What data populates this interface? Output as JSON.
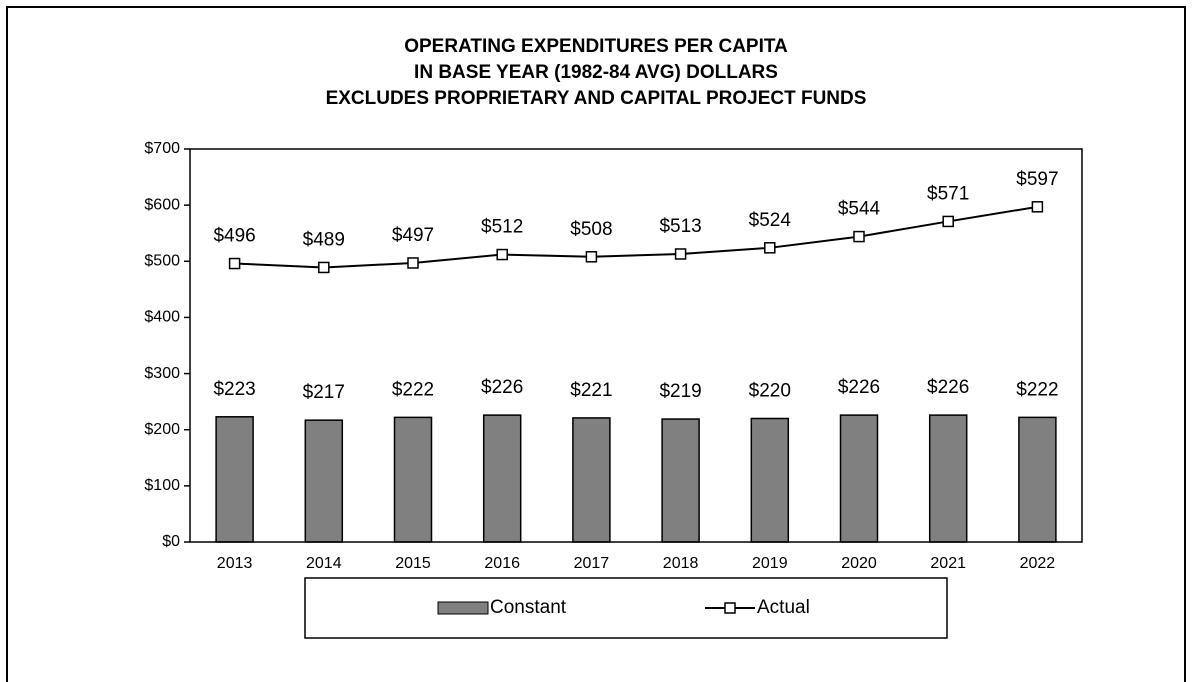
{
  "chart_data": {
    "type": "combo",
    "title": [
      "OPERATING EXPENDITURES PER CAPITA",
      "IN BASE YEAR (1982-84 AVG) DOLLARS",
      "EXCLUDES PROPRIETARY AND CAPITAL PROJECT FUNDS"
    ],
    "categories": [
      "2013",
      "2014",
      "2015",
      "2016",
      "2017",
      "2018",
      "2019",
      "2020",
      "2021",
      "2022"
    ],
    "series": [
      {
        "name": "Constant",
        "type": "bar",
        "color": "#808080",
        "values": [
          223,
          217,
          222,
          226,
          221,
          219,
          220,
          226,
          226,
          222
        ],
        "value_labels": [
          "$223",
          "$217",
          "$222",
          "$226",
          "$221",
          "$219",
          "$220",
          "$226",
          "$226",
          "$222"
        ]
      },
      {
        "name": "Actual",
        "type": "line",
        "color": "#000000",
        "values": [
          496,
          489,
          497,
          512,
          508,
          513,
          524,
          544,
          571,
          597
        ],
        "value_labels": [
          "$496",
          "$489",
          "$497",
          "$512",
          "$508",
          "$513",
          "$524",
          "$544",
          "$571",
          "$597"
        ]
      }
    ],
    "ylim": [
      0,
      700
    ],
    "yticks": [
      {
        "value": 0,
        "label": "$0"
      },
      {
        "value": 100,
        "label": "$100"
      },
      {
        "value": 200,
        "label": "$200"
      },
      {
        "value": 300,
        "label": "$300"
      },
      {
        "value": 400,
        "label": "$400"
      },
      {
        "value": 500,
        "label": "$500"
      },
      {
        "value": 600,
        "label": "$600"
      },
      {
        "value": 700,
        "label": "$700"
      }
    ],
    "grid": false,
    "legend": "bottom"
  }
}
